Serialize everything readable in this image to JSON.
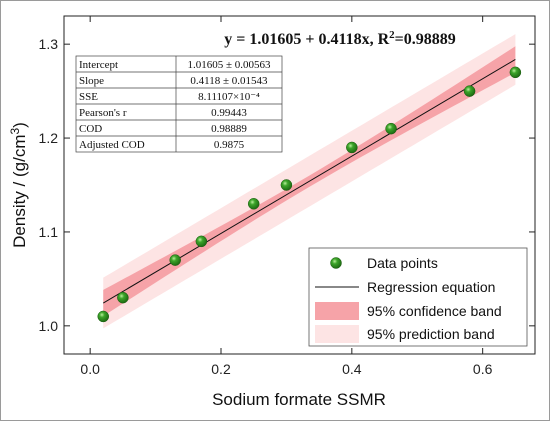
{
  "chart_data": {
    "type": "scatter",
    "title": "",
    "equation_pre": "y = 1.01605 + 0.4118x, R",
    "equation_sup": "2",
    "equation_post": "=0.98889",
    "xlabel": "Sodium formate SSMR",
    "ylabel_pre": "Density / (g/cm",
    "ylabel_sup": "3",
    "ylabel_post": ")",
    "xlim": [
      -0.04,
      0.68
    ],
    "ylim": [
      0.97,
      1.33
    ],
    "xticks": [
      "0.0",
      "0.2",
      "0.4",
      "0.6"
    ],
    "xtick_values": [
      0.0,
      0.2,
      0.4,
      0.6
    ],
    "yticks": [
      "1.0",
      "1.1",
      "1.2",
      "1.3"
    ],
    "ytick_values": [
      1.0,
      1.1,
      1.2,
      1.3
    ],
    "regression": {
      "intercept": 1.01605,
      "slope": 0.4118,
      "x_range": [
        0.02,
        0.65
      ]
    },
    "confidence_halfwidth": {
      "ends": 0.014,
      "center": 0.006
    },
    "prediction_halfwidth": 0.027,
    "series": [
      {
        "name": "Data points",
        "x": [
          0.02,
          0.05,
          0.13,
          0.17,
          0.25,
          0.3,
          0.4,
          0.46,
          0.58,
          0.65
        ],
        "y": [
          1.01,
          1.03,
          1.07,
          1.09,
          1.13,
          1.15,
          1.19,
          1.21,
          1.25,
          1.27
        ]
      }
    ],
    "legend": {
      "position": "bottom-right",
      "entries": [
        "Data points",
        "Regression equation",
        "95% confidence band",
        "95% prediction band"
      ]
    },
    "stats_table": {
      "rows": [
        {
          "label": "Intercept",
          "value": "1.01605 ± 0.00563"
        },
        {
          "label": "Slope",
          "value": "0.4118 ± 0.01543"
        },
        {
          "label": "SSE",
          "value": "8.11107×10⁻⁴"
        },
        {
          "label": "Pearson's r",
          "value": "0.99443"
        },
        {
          "label": "COD",
          "value": "0.98889"
        },
        {
          "label": "Adjusted COD",
          "value": "0.9875"
        }
      ]
    },
    "colors": {
      "points": "#2e8b1e",
      "point_highlight": "#a6e08a",
      "line": "#111111",
      "confidence_band": "#f6a3a8",
      "prediction_band": "#fde4e4"
    }
  }
}
